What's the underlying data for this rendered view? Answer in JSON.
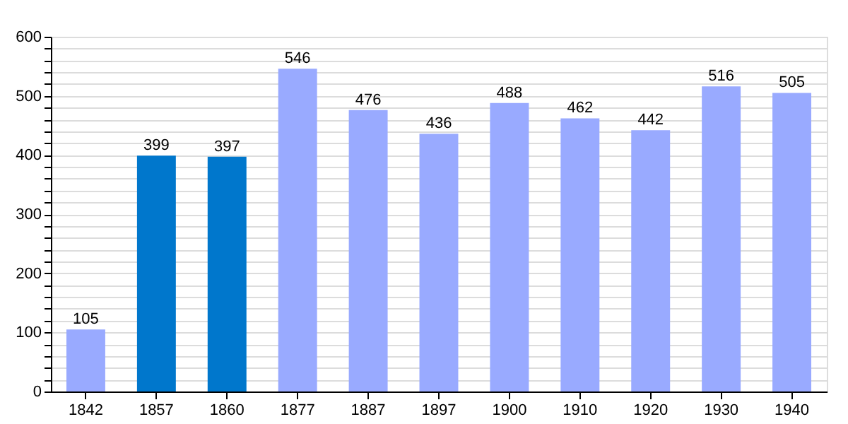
{
  "chart_data": {
    "type": "bar",
    "categories": [
      "1842",
      "1857",
      "1860",
      "1877",
      "1887",
      "1897",
      "1900",
      "1910",
      "1920",
      "1930",
      "1940"
    ],
    "values": [
      105,
      399,
      397,
      546,
      476,
      436,
      488,
      462,
      442,
      516,
      505
    ],
    "colors": [
      "#99aaff",
      "#0077cc",
      "#0077cc",
      "#99aaff",
      "#99aaff",
      "#99aaff",
      "#99aaff",
      "#99aaff",
      "#99aaff",
      "#99aaff",
      "#99aaff"
    ],
    "ylim": [
      0,
      600
    ],
    "yticks": [
      0,
      {
        "value": 20,
        "label": null
      },
      {
        "value": 40,
        "label": null
      },
      {
        "value": 60,
        "label": null
      },
      {
        "value": 80,
        "label": null
      },
      100,
      {
        "value": 120,
        "label": null
      },
      {
        "value": 140,
        "label": null
      },
      {
        "value": 160,
        "label": null
      },
      {
        "value": 180,
        "label": null
      },
      200,
      {
        "value": 220,
        "label": null
      },
      {
        "value": 240,
        "label": null
      },
      {
        "value": 260,
        "label": null
      },
      {
        "value": 280,
        "label": null
      },
      300,
      {
        "value": 320,
        "label": null
      },
      {
        "value": 340,
        "label": null
      },
      {
        "value": 360,
        "label": null
      },
      {
        "value": 380,
        "label": null
      },
      400,
      {
        "value": 420,
        "label": null
      },
      {
        "value": 440,
        "label": null
      },
      {
        "value": 460,
        "label": null
      },
      {
        "value": 480,
        "label": null
      },
      500,
      {
        "value": 520,
        "label": null
      },
      {
        "value": 540,
        "label": null
      },
      {
        "value": 560,
        "label": null
      },
      {
        "value": 580,
        "label": null
      },
      600
    ],
    "grid": "y",
    "data_labels": true
  }
}
